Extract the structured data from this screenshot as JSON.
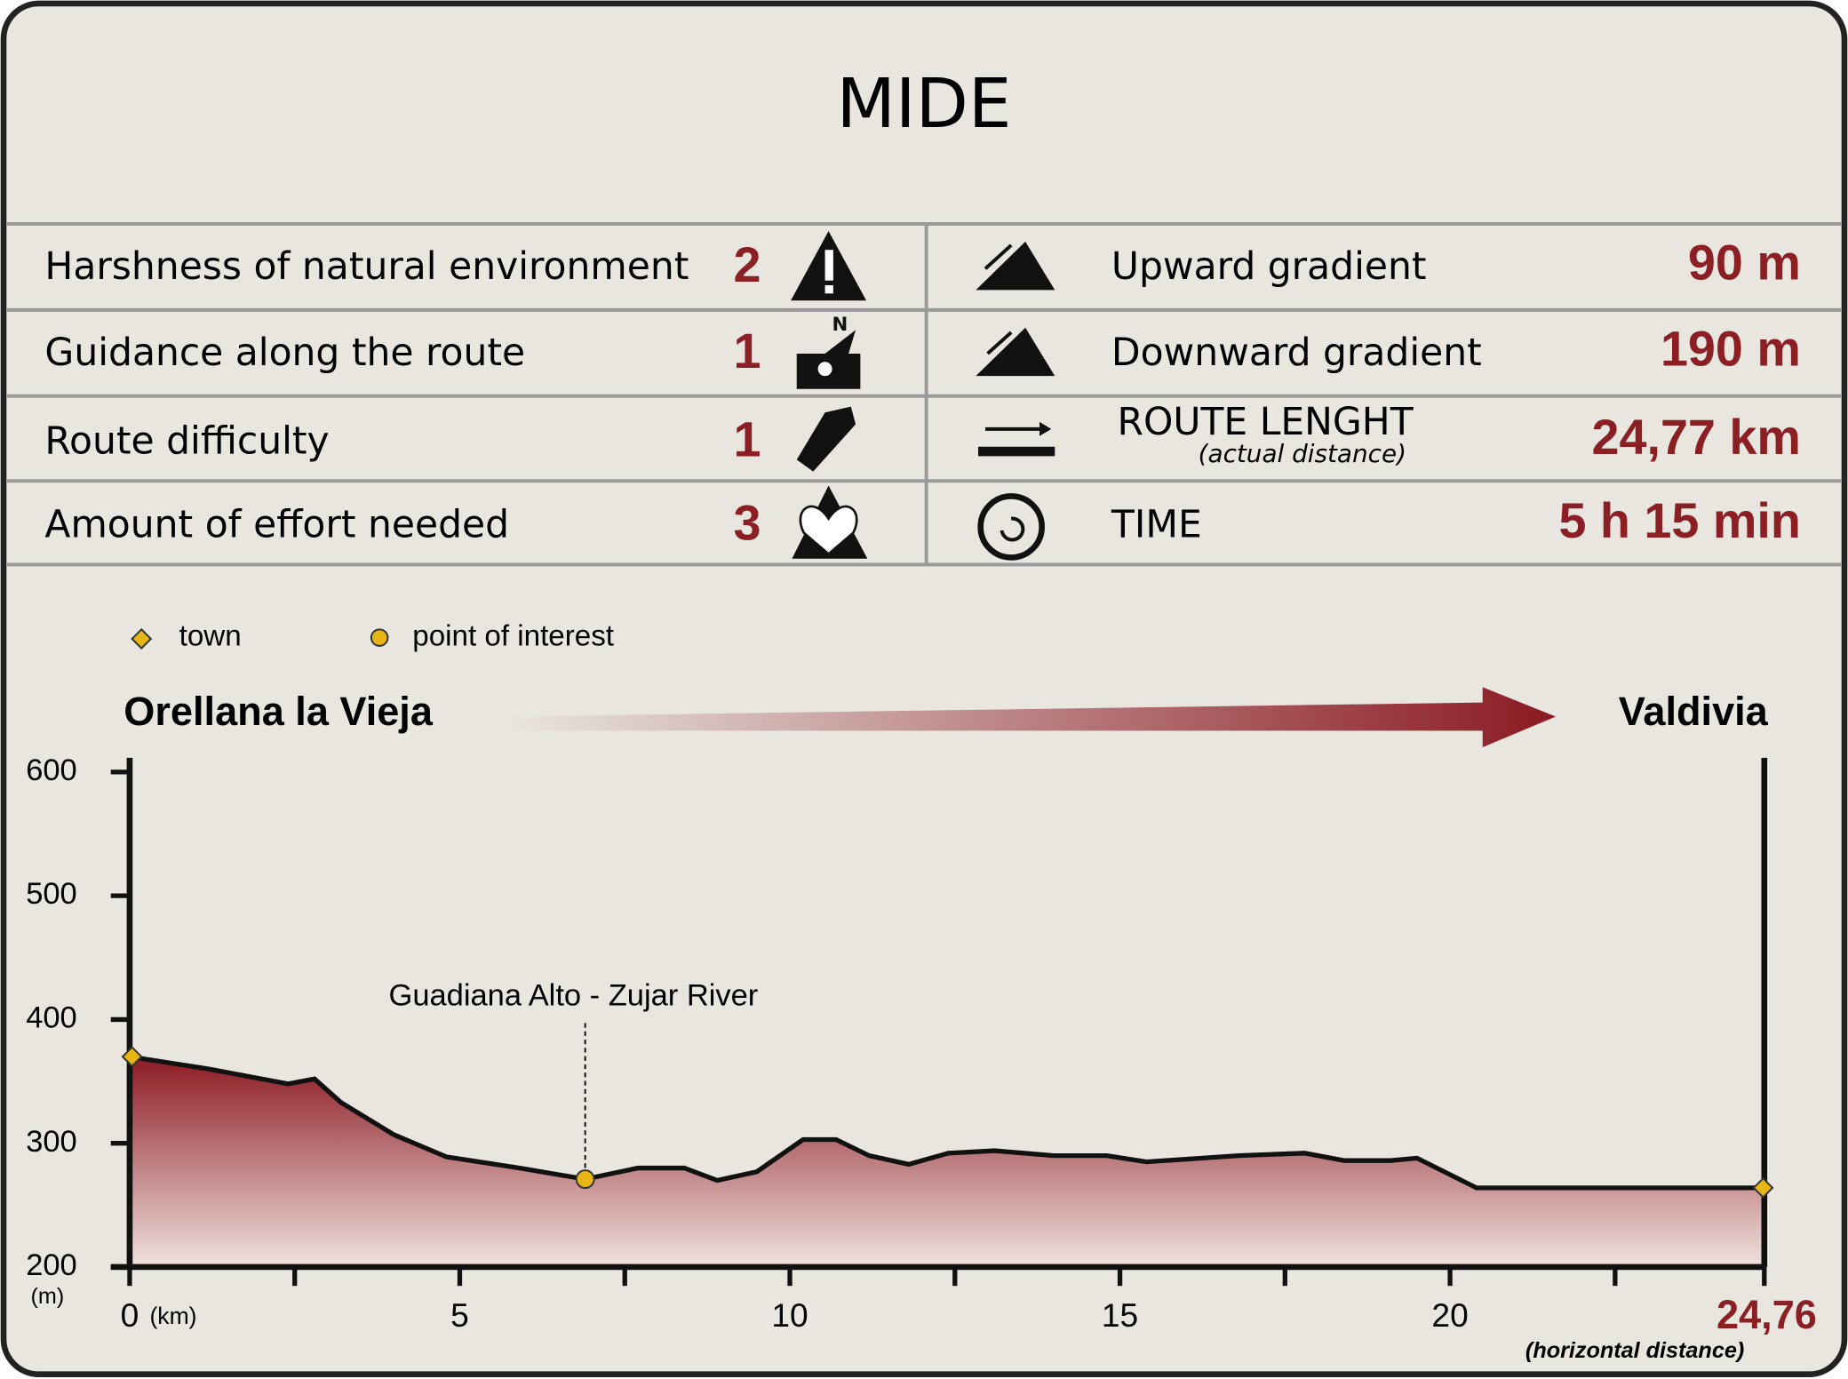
{
  "header": {
    "title": "MIDE"
  },
  "mide": {
    "left": [
      {
        "label": "Harshness of natural environment",
        "value": "2"
      },
      {
        "label": "Guidance along the route",
        "value": "1"
      },
      {
        "label": "Route difficulty",
        "value": "1"
      },
      {
        "label": "Amount of effort needed",
        "value": "3"
      }
    ],
    "right": [
      {
        "label": "Upward gradient",
        "value": "90 m"
      },
      {
        "label": "Downward gradient",
        "value": "190 m"
      },
      {
        "label": "ROUTE LENGHT",
        "sublabel": "(actual distance)",
        "value": "24,77 km"
      },
      {
        "label": "TIME",
        "value": "5 h 15 min"
      }
    ]
  },
  "chart_data": {
    "type": "area",
    "legend": [
      {
        "name": "town",
        "color": "#e8b614"
      },
      {
        "name": "point of interest",
        "color": "#e8b614"
      }
    ],
    "start": "Orellana la Vieja",
    "end": "Valdivia",
    "x": [
      0,
      1.2,
      2.4,
      2.8,
      3.2,
      4.0,
      4.8,
      5.9,
      6.9,
      7.7,
      8.4,
      8.9,
      9.5,
      10.2,
      10.7,
      11.2,
      11.8,
      12.4,
      13.1,
      14.0,
      14.8,
      15.4,
      16.8,
      17.8,
      18.4,
      19.1,
      19.5,
      20.4,
      24.76
    ],
    "values": [
      370,
      360,
      348,
      352,
      333,
      307,
      289,
      280,
      271,
      280,
      280,
      270,
      277,
      303,
      303,
      290,
      283,
      292,
      294,
      290,
      290,
      285,
      290,
      292,
      286,
      286,
      288,
      264,
      264
    ],
    "color": "#8b1a22",
    "annotations": [
      {
        "text": "Guadiana Alto - Zujar River",
        "x": 6.9,
        "y": 271
      }
    ],
    "xlim": [
      0,
      24.76
    ],
    "ylim": [
      200,
      600
    ],
    "xticks": [
      0,
      5,
      10,
      15,
      20,
      {
        "value": 24.76,
        "label": "24,76"
      }
    ],
    "xminorticks": [
      2.5,
      7.5,
      12.5,
      17.5,
      22.5
    ],
    "yticks": [
      200,
      300,
      400,
      500,
      600
    ],
    "xunit": "(km)",
    "yunit": "(m)",
    "xnote": "(horizontal distance)"
  }
}
